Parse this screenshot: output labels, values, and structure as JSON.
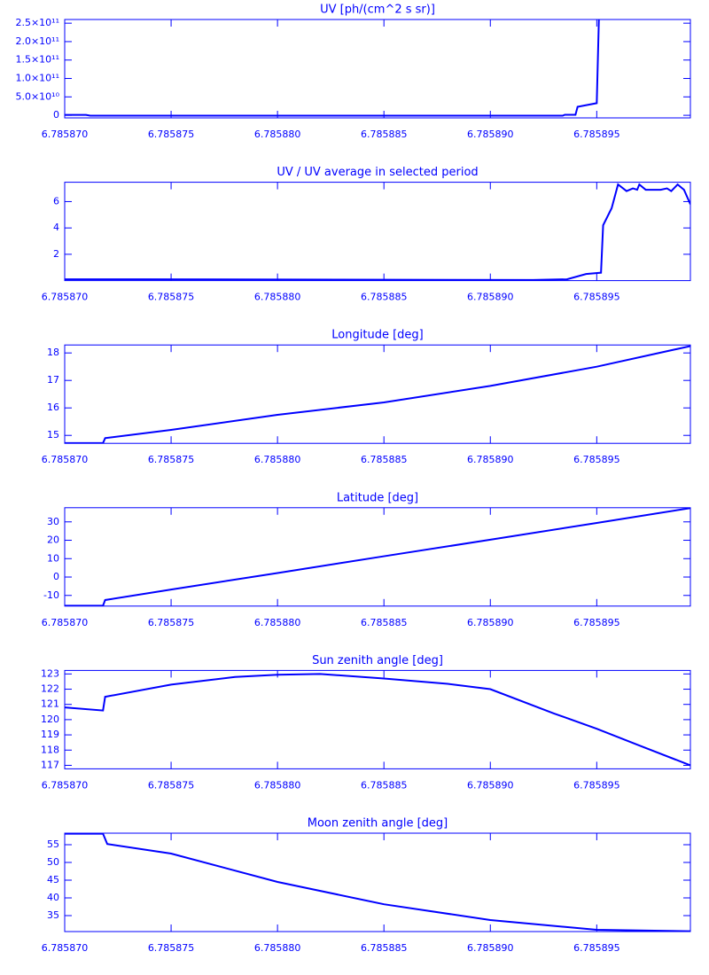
{
  "chart_data": [
    {
      "type": "line",
      "title": "UV [ph/(cm^2 s sr)]",
      "color": "#0000ff",
      "x": [
        6.78587,
        6.785871,
        6.7858712,
        6.7858934,
        6.7858935,
        6.785894,
        6.7858941,
        6.785895,
        6.7858951
      ],
      "values": [
        1000000000,
        1000000000,
        -1000000000,
        -1000000000,
        1500000000,
        1500000000,
        23000000000,
        33000000000,
        260000000000
      ],
      "xlim": [
        6.78587,
        6.7858994
      ],
      "ylim": [
        -7000000000,
        260000000000
      ],
      "xticks": [
        {
          "value": 6.78587,
          "label": "6.785870"
        },
        {
          "value": 6.785875,
          "label": "6.785875"
        },
        {
          "value": 6.78588,
          "label": "6.785880"
        },
        {
          "value": 6.785885,
          "label": "6.785885"
        },
        {
          "value": 6.78589,
          "label": "6.785890"
        },
        {
          "value": 6.785895,
          "label": "6.785895"
        }
      ],
      "yticks": [
        0,
        {
          "value": 50000000000,
          "label": "5.0×10¹⁰"
        },
        {
          "value": 100000000000,
          "label": "1.0×10¹¹"
        },
        {
          "value": 150000000000,
          "label": "1.5×10¹¹"
        },
        {
          "value": 200000000000,
          "label": "2.0×10¹¹"
        },
        {
          "value": 250000000000,
          "label": "2.5×10¹¹"
        }
      ]
    },
    {
      "type": "line",
      "title": "UV / UV average in selected period",
      "color": "#0000ff",
      "x": [
        6.78587,
        6.7858736,
        6.785892,
        6.7858936,
        6.7858945,
        6.7858952,
        6.7858953,
        6.7858957,
        6.785896,
        6.7858964,
        6.7858967,
        6.7858969,
        6.785897,
        6.7858973,
        6.785898,
        6.7858983,
        6.7858985,
        6.7858988,
        6.7858991,
        6.7858994
      ],
      "values": [
        0.1,
        0.1,
        0.05,
        0.1,
        0.5,
        0.6,
        4.2,
        5.5,
        7.3,
        6.8,
        7.0,
        6.9,
        7.3,
        6.9,
        6.9,
        7.0,
        6.8,
        7.3,
        6.9,
        5.8
      ],
      "xlim": [
        6.78587,
        6.7858994
      ],
      "ylim": [
        0,
        7.47
      ],
      "xticks": [
        {
          "value": 6.78587,
          "label": "6.785870"
        },
        {
          "value": 6.785875,
          "label": "6.785875"
        },
        {
          "value": 6.78588,
          "label": "6.785880"
        },
        {
          "value": 6.785885,
          "label": "6.785885"
        },
        {
          "value": 6.78589,
          "label": "6.785890"
        },
        {
          "value": 6.785895,
          "label": "6.785895"
        }
      ],
      "yticks": [
        2,
        4,
        6
      ]
    },
    {
      "type": "line",
      "title": "Longitude [deg]",
      "color": "#0000ff",
      "x": [
        6.78587,
        6.7858718,
        6.7858719,
        6.785875,
        6.78588,
        6.785885,
        6.78589,
        6.785895,
        6.7858994
      ],
      "values": [
        14.72,
        14.72,
        14.9,
        15.2,
        15.75,
        16.2,
        16.8,
        17.5,
        18.25
      ],
      "xlim": [
        6.78587,
        6.7858994
      ],
      "ylim": [
        14.71,
        18.29
      ],
      "xticks": [
        {
          "value": 6.78587,
          "label": "6.785870"
        },
        {
          "value": 6.785875,
          "label": "6.785875"
        },
        {
          "value": 6.78588,
          "label": "6.785880"
        },
        {
          "value": 6.785885,
          "label": "6.785885"
        },
        {
          "value": 6.78589,
          "label": "6.785890"
        },
        {
          "value": 6.785895,
          "label": "6.785895"
        }
      ],
      "yticks": [
        15,
        16,
        17,
        18
      ]
    },
    {
      "type": "line",
      "title": "Latitude [deg]",
      "color": "#0000ff",
      "x": [
        6.78587,
        6.7858718,
        6.7858719,
        6.785875,
        6.78588,
        6.785885,
        6.78589,
        6.785895,
        6.7858994
      ],
      "values": [
        -15.6,
        -15.6,
        -12.5,
        -6.8,
        2.2,
        11.3,
        20.3,
        29.4,
        37.5
      ],
      "xlim": [
        6.78587,
        6.7858994
      ],
      "ylim": [
        -15.8,
        37.7
      ],
      "xticks": [
        {
          "value": 6.78587,
          "label": "6.785870"
        },
        {
          "value": 6.785875,
          "label": "6.785875"
        },
        {
          "value": 6.78588,
          "label": "6.785880"
        },
        {
          "value": 6.785885,
          "label": "6.785885"
        },
        {
          "value": 6.78589,
          "label": "6.785890"
        },
        {
          "value": 6.785895,
          "label": "6.785895"
        }
      ],
      "yticks": [
        -10,
        0,
        10,
        20,
        30
      ]
    },
    {
      "type": "line",
      "title": "Sun zenith angle [deg]",
      "color": "#0000ff",
      "x": [
        6.78587,
        6.7858718,
        6.7858719,
        6.785875,
        6.785878,
        6.78588,
        6.785882,
        6.785885,
        6.785888,
        6.78589,
        6.785893,
        6.785895,
        6.785897,
        6.7858994
      ],
      "values": [
        120.8,
        120.6,
        121.5,
        122.3,
        122.8,
        122.95,
        123.0,
        122.7,
        122.35,
        122.0,
        120.4,
        119.4,
        118.3,
        117.0
      ],
      "xlim": [
        6.78587,
        6.7858994
      ],
      "ylim": [
        116.77,
        123.23
      ],
      "xticks": [
        {
          "value": 6.78587,
          "label": "6.785870"
        },
        {
          "value": 6.785875,
          "label": "6.785875"
        },
        {
          "value": 6.78588,
          "label": "6.785880"
        },
        {
          "value": 6.785885,
          "label": "6.785885"
        },
        {
          "value": 6.78589,
          "label": "6.785890"
        },
        {
          "value": 6.785895,
          "label": "6.785895"
        }
      ],
      "yticks": [
        117,
        118,
        119,
        120,
        121,
        122,
        123
      ]
    },
    {
      "type": "line",
      "title": "Moon zenith angle [deg]",
      "color": "#0000ff",
      "x": [
        6.78587,
        6.7858718,
        6.785872,
        6.785875,
        6.78588,
        6.785885,
        6.78589,
        6.785895,
        6.7858994
      ],
      "values": [
        58.1,
        58.1,
        55.2,
        52.5,
        44.5,
        38.2,
        33.75,
        31.0,
        30.6
      ],
      "xlim": [
        6.78587,
        6.7858994
      ],
      "ylim": [
        30.5,
        58.25
      ],
      "xticks": [
        {
          "value": 6.78587,
          "label": "6.785870"
        },
        {
          "value": 6.785875,
          "label": "6.785875"
        },
        {
          "value": 6.78588,
          "label": "6.785880"
        },
        {
          "value": 6.785885,
          "label": "6.785885"
        },
        {
          "value": 6.78589,
          "label": "6.785890"
        },
        {
          "value": 6.785895,
          "label": "6.785895"
        }
      ],
      "yticks": [
        35,
        40,
        45,
        50,
        55
      ]
    }
  ]
}
